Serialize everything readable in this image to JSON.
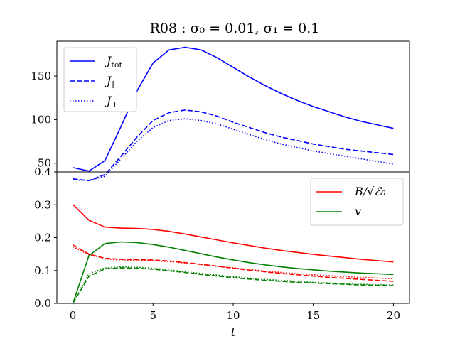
{
  "chart_data": {
    "type": "line",
    "title": "R08 : σ₀ = 0.01, σ₁ = 0.1",
    "x": [
      0,
      1,
      2,
      3,
      4,
      5,
      6,
      7,
      8,
      9,
      10,
      11,
      12,
      13,
      14,
      15,
      16,
      17,
      18,
      19,
      20
    ],
    "xlabel": "t",
    "xlim": [
      -1,
      21
    ],
    "xticks": [
      0,
      5,
      10,
      15,
      20
    ],
    "xtick_labels": [
      "0",
      "5",
      "10",
      "15",
      "20"
    ],
    "panels": [
      {
        "name": "currents",
        "ylim": [
          40,
          190
        ],
        "yticks": [
          50,
          100,
          150
        ],
        "ytick_labels": [
          "50",
          "100",
          "150"
        ],
        "legend_position": "top-left",
        "series": [
          {
            "name": "J_tot",
            "label_main": "J",
            "label_sub": "tot",
            "color": "#0000ff",
            "style": "solid",
            "values": [
              45,
              41,
              53,
              92,
              133,
              165,
              180,
              183,
              180,
              171,
              160,
              149,
              139,
              130,
              122,
              115,
              109,
              103,
              98,
              94,
              90
            ]
          },
          {
            "name": "J_parallel",
            "label_main": "J",
            "label_sub": "∥",
            "color": "#0000ff",
            "style": "dashed",
            "values": [
              32,
              30,
              37,
              58,
              80,
              99,
              108,
              111,
              109,
              104,
              97,
              91,
              85,
              80,
              76,
              72,
              69,
              66,
              64,
              62,
              60
            ]
          },
          {
            "name": "J_perp",
            "label_main": "J",
            "label_sub": "⊥",
            "color": "#0000ff",
            "style": "dotted",
            "values": [
              31,
              30,
              35,
              55,
              75,
              91,
              99,
              101,
              99,
              95,
              89,
              83,
              77,
              72,
              68,
              64,
              61,
              58,
              55,
              52,
              49
            ]
          }
        ]
      },
      {
        "name": "fields",
        "ylim": [
          0.0,
          0.4
        ],
        "yticks": [
          0.0,
          0.1,
          0.2,
          0.3,
          0.4
        ],
        "ytick_labels": [
          "0.0",
          "0.1",
          "0.2",
          "0.3",
          "0.4"
        ],
        "legend_position": "top-right",
        "legend_entries": [
          {
            "label": "B/√ℰ₀",
            "color": "#ff0000"
          },
          {
            "label": "v",
            "color": "#008000"
          }
        ],
        "series": [
          {
            "name": "B_solid",
            "color": "#ff0000",
            "style": "solid",
            "values": [
              0.301,
              0.253,
              0.232,
              0.229,
              0.228,
              0.225,
              0.219,
              0.211,
              0.202,
              0.193,
              0.184,
              0.176,
              0.168,
              0.161,
              0.155,
              0.149,
              0.144,
              0.139,
              0.134,
              0.13,
              0.126
            ]
          },
          {
            "name": "B_dashed",
            "color": "#ff0000",
            "style": "dashed",
            "values": [
              0.178,
              0.15,
              0.137,
              0.134,
              0.133,
              0.132,
              0.129,
              0.124,
              0.119,
              0.113,
              0.107,
              0.101,
              0.096,
              0.091,
              0.087,
              0.083,
              0.079,
              0.076,
              0.073,
              0.07,
              0.067
            ]
          },
          {
            "name": "B_dotted",
            "color": "#ff0000",
            "style": "dotted",
            "values": [
              0.172,
              0.148,
              0.135,
              0.132,
              0.131,
              0.13,
              0.127,
              0.123,
              0.118,
              0.113,
              0.108,
              0.103,
              0.098,
              0.094,
              0.09,
              0.087,
              0.084,
              0.081,
              0.079,
              0.077,
              0.075
            ]
          },
          {
            "name": "v_solid",
            "color": "#008000",
            "style": "solid",
            "values": [
              0.0,
              0.145,
              0.182,
              0.187,
              0.185,
              0.179,
              0.171,
              0.161,
              0.151,
              0.141,
              0.132,
              0.124,
              0.117,
              0.111,
              0.106,
              0.102,
              0.098,
              0.095,
              0.092,
              0.09,
              0.088
            ]
          },
          {
            "name": "v_dashed",
            "color": "#008000",
            "style": "dashed",
            "values": [
              0.0,
              0.082,
              0.105,
              0.108,
              0.107,
              0.104,
              0.099,
              0.094,
              0.088,
              0.083,
              0.078,
              0.074,
              0.07,
              0.067,
              0.064,
              0.062,
              0.06,
              0.058,
              0.056,
              0.055,
              0.054
            ]
          },
          {
            "name": "v_dotted",
            "color": "#008000",
            "style": "dotted",
            "values": [
              0.0,
              0.09,
              0.108,
              0.111,
              0.11,
              0.107,
              0.102,
              0.096,
              0.091,
              0.086,
              0.081,
              0.077,
              0.073,
              0.07,
              0.067,
              0.064,
              0.062,
              0.06,
              0.058,
              0.057,
              0.056
            ]
          }
        ]
      }
    ]
  }
}
